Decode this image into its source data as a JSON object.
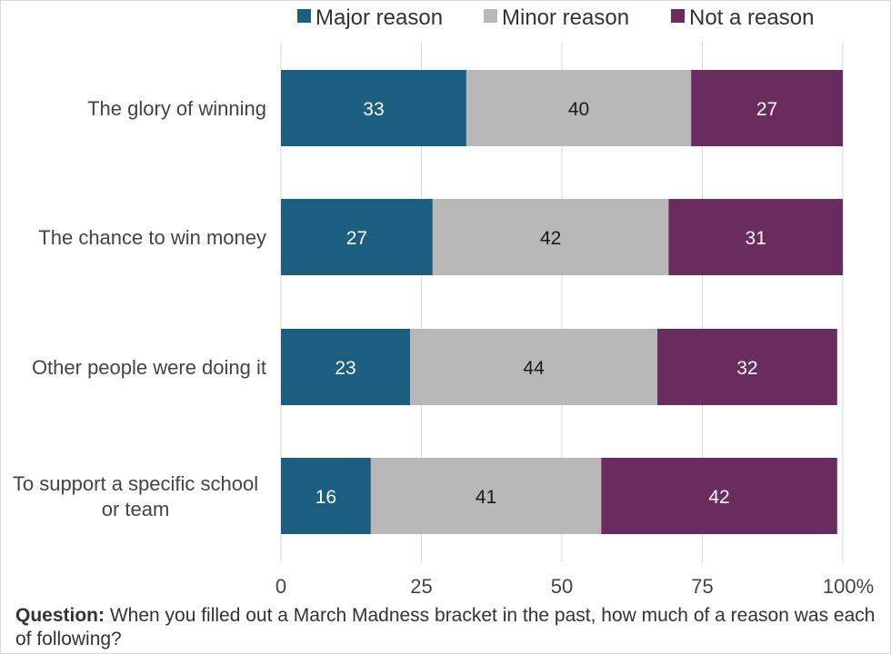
{
  "chart_data": {
    "type": "bar",
    "orientation": "horizontal",
    "stacked": true,
    "categories": [
      "The glory of winning",
      "The chance to win money",
      "Other people were doing it",
      "To support a specific school or team"
    ],
    "series": [
      {
        "name": "Major reason",
        "color": "#1b5e80",
        "values": [
          33,
          27,
          23,
          16
        ]
      },
      {
        "name": "Minor reason",
        "color": "#b8b8b8",
        "values": [
          40,
          42,
          44,
          41
        ]
      },
      {
        "name": "Not a reason",
        "color": "#6a2c5f",
        "values": [
          27,
          31,
          32,
          42
        ]
      }
    ],
    "xlim": [
      0,
      100
    ],
    "x_ticks": [
      "0",
      "25",
      "50",
      "75",
      "100%"
    ],
    "grid": true,
    "legend_position": "top"
  },
  "note": {
    "label": "Question:",
    "text": " When you filled out a March Madness bracket in the past, how much of a reason was each of following?"
  }
}
